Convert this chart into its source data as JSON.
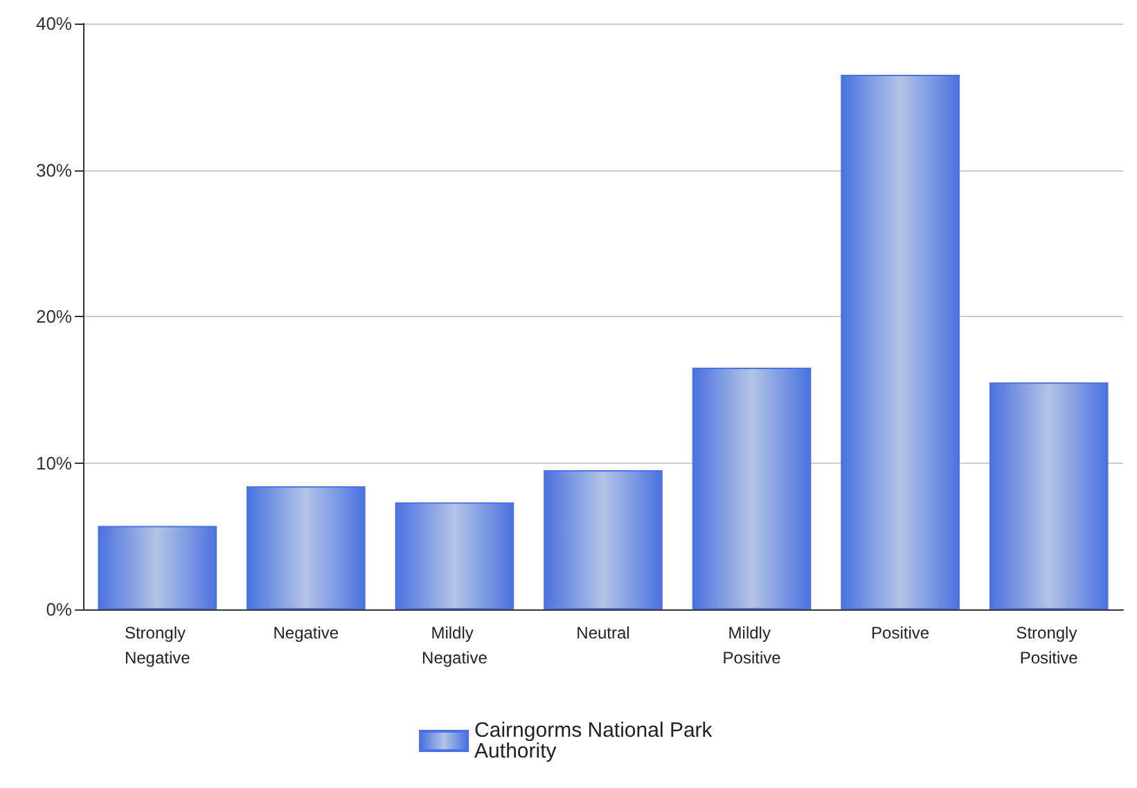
{
  "chart_data": {
    "type": "bar",
    "categories": [
      "Strongly Negative",
      "Negative",
      "Mildly Negative",
      "Neutral",
      "Mildly Positive",
      "Positive",
      "Strongly Positive"
    ],
    "series": [
      {
        "name": "Cairngorms National Park Authority",
        "color": "#4a72e0",
        "values": [
          5.7,
          8.4,
          7.3,
          9.5,
          16.5,
          36.5,
          15.5
        ]
      }
    ],
    "ylim": [
      0,
      40
    ],
    "yticks": [
      {
        "value": 0,
        "label": "0%"
      },
      {
        "value": 10,
        "label": "10%"
      },
      {
        "value": 20,
        "label": "20%"
      },
      {
        "value": 30,
        "label": "30%"
      },
      {
        "value": 40,
        "label": "40%"
      }
    ],
    "grid": "y",
    "legend": "bottom"
  }
}
